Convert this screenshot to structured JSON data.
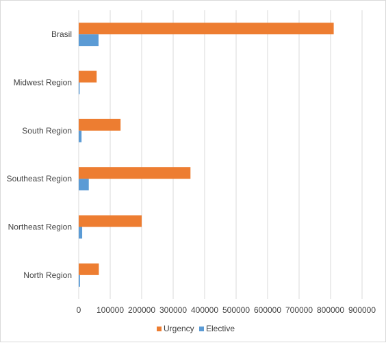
{
  "chart_data": {
    "type": "bar",
    "orientation": "horizontal",
    "categories": [
      "Brasil",
      "Midwest Region",
      "South Region",
      "Southeast Region",
      "Northeast Region",
      "North Region"
    ],
    "series": [
      {
        "name": "Urgency",
        "color": "#ED7D31",
        "values": [
          810000,
          57000,
          133000,
          355000,
          200000,
          64000
        ]
      },
      {
        "name": "Elective",
        "color": "#5B9BD5",
        "values": [
          63000,
          3000,
          9000,
          32000,
          11000,
          4000
        ]
      }
    ],
    "xlim": [
      0,
      900000
    ],
    "xticks": [
      "0",
      "100000",
      "200000",
      "300000",
      "400000",
      "500000",
      "600000",
      "700000",
      "800000",
      "900000"
    ],
    "grid": true,
    "legend": "bottom"
  }
}
